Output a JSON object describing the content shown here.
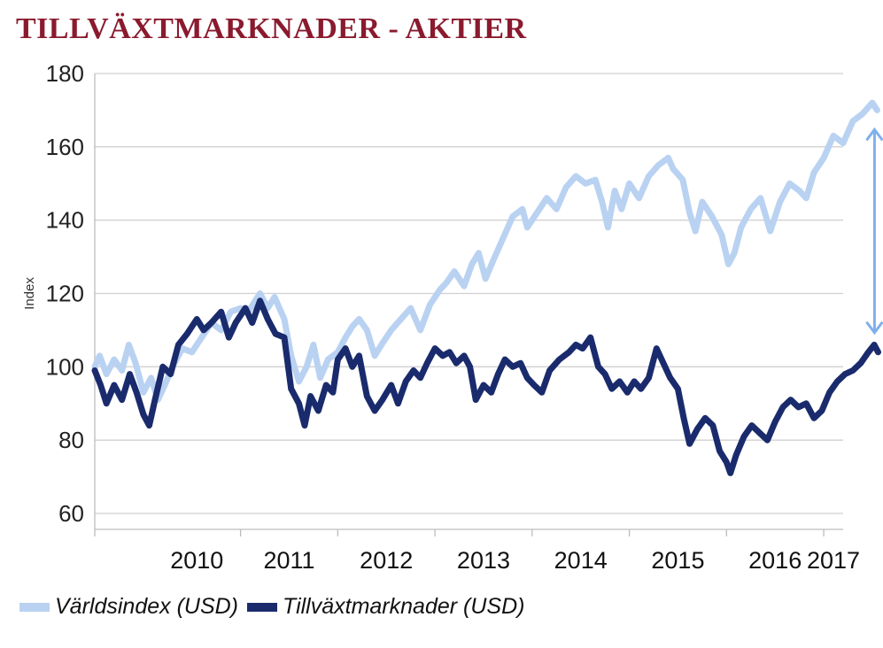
{
  "title": "TILLVÄXTMARKNADER - AKTIER",
  "colors": {
    "title": "#8a1a2e",
    "world": "#b9d2f2",
    "em": "#1a2b6d",
    "arrow": "#7fb0ee",
    "grid": "#d0d0d0"
  },
  "chart_data": {
    "type": "line",
    "title": "TILLVÄXTMARKNADER - AKTIER",
    "xlabel": "",
    "ylabel": "Index",
    "ylim": [
      60,
      180
    ],
    "yticks": [
      60,
      80,
      100,
      120,
      140,
      160,
      180
    ],
    "xlim": [
      2009.5,
      2017.2
    ],
    "xticks": [
      "2010",
      "2011",
      "2012",
      "2013",
      "2014",
      "2015",
      "2016",
      "2017"
    ],
    "grid": true,
    "legend_position": "bottom",
    "annotation": "double-headed arrow between the two series at end of 2017",
    "series": [
      {
        "name": "Världsindex (USD)",
        "color": "#b9d2f2",
        "points": [
          [
            2009.5,
            100
          ],
          [
            2009.55,
            103
          ],
          [
            2009.62,
            98
          ],
          [
            2009.7,
            102
          ],
          [
            2009.78,
            99
          ],
          [
            2009.85,
            106
          ],
          [
            2009.92,
            101
          ],
          [
            2010.0,
            93
          ],
          [
            2010.08,
            97
          ],
          [
            2010.15,
            91
          ],
          [
            2010.22,
            95
          ],
          [
            2010.3,
            100
          ],
          [
            2010.4,
            105
          ],
          [
            2010.5,
            104
          ],
          [
            2010.6,
            108
          ],
          [
            2010.7,
            112
          ],
          [
            2010.8,
            110
          ],
          [
            2010.9,
            115
          ],
          [
            2011.0,
            116
          ],
          [
            2011.08,
            115
          ],
          [
            2011.15,
            118
          ],
          [
            2011.2,
            120
          ],
          [
            2011.28,
            116
          ],
          [
            2011.35,
            119
          ],
          [
            2011.45,
            113
          ],
          [
            2011.52,
            103
          ],
          [
            2011.6,
            96
          ],
          [
            2011.68,
            100
          ],
          [
            2011.75,
            106
          ],
          [
            2011.82,
            97
          ],
          [
            2011.9,
            102
          ],
          [
            2012.0,
            104
          ],
          [
            2012.08,
            108
          ],
          [
            2012.15,
            111
          ],
          [
            2012.22,
            113
          ],
          [
            2012.3,
            110
          ],
          [
            2012.38,
            103
          ],
          [
            2012.45,
            106
          ],
          [
            2012.55,
            110
          ],
          [
            2012.65,
            113
          ],
          [
            2012.75,
            116
          ],
          [
            2012.85,
            110
          ],
          [
            2012.95,
            117
          ],
          [
            2013.05,
            121
          ],
          [
            2013.12,
            123
          ],
          [
            2013.2,
            126
          ],
          [
            2013.3,
            122
          ],
          [
            2013.38,
            128
          ],
          [
            2013.45,
            131
          ],
          [
            2013.52,
            124
          ],
          [
            2013.6,
            129
          ],
          [
            2013.7,
            135
          ],
          [
            2013.8,
            141
          ],
          [
            2013.9,
            143
          ],
          [
            2013.95,
            138
          ],
          [
            2014.05,
            142
          ],
          [
            2014.15,
            146
          ],
          [
            2014.25,
            143
          ],
          [
            2014.35,
            149
          ],
          [
            2014.45,
            152
          ],
          [
            2014.55,
            150
          ],
          [
            2014.65,
            151
          ],
          [
            2014.72,
            145
          ],
          [
            2014.78,
            138
          ],
          [
            2014.85,
            148
          ],
          [
            2014.92,
            143
          ],
          [
            2015.0,
            150
          ],
          [
            2015.1,
            146
          ],
          [
            2015.2,
            152
          ],
          [
            2015.3,
            155
          ],
          [
            2015.4,
            157
          ],
          [
            2015.45,
            154
          ],
          [
            2015.55,
            151
          ],
          [
            2015.62,
            142
          ],
          [
            2015.68,
            137
          ],
          [
            2015.75,
            145
          ],
          [
            2015.85,
            141
          ],
          [
            2015.95,
            136
          ],
          [
            2016.02,
            128
          ],
          [
            2016.08,
            131
          ],
          [
            2016.15,
            138
          ],
          [
            2016.25,
            143
          ],
          [
            2016.35,
            146
          ],
          [
            2016.45,
            137
          ],
          [
            2016.55,
            145
          ],
          [
            2016.65,
            150
          ],
          [
            2016.75,
            148
          ],
          [
            2016.82,
            146
          ],
          [
            2016.9,
            153
          ],
          [
            2017.0,
            157
          ],
          [
            2017.1,
            163
          ],
          [
            2017.2,
            161
          ],
          [
            2017.3,
            167
          ],
          [
            2017.4,
            169
          ],
          [
            2017.5,
            172
          ],
          [
            2017.55,
            170
          ]
        ]
      },
      {
        "name": "Tillväxtmarknader (USD)",
        "color": "#1a2b6d",
        "points": [
          [
            2009.5,
            99
          ],
          [
            2009.56,
            95
          ],
          [
            2009.62,
            90
          ],
          [
            2009.7,
            95
          ],
          [
            2009.78,
            91
          ],
          [
            2009.86,
            98
          ],
          [
            2009.93,
            93
          ],
          [
            2010.0,
            87
          ],
          [
            2010.06,
            84
          ],
          [
            2010.12,
            91
          ],
          [
            2010.2,
            100
          ],
          [
            2010.28,
            98
          ],
          [
            2010.36,
            106
          ],
          [
            2010.45,
            109
          ],
          [
            2010.55,
            113
          ],
          [
            2010.62,
            110
          ],
          [
            2010.7,
            112
          ],
          [
            2010.8,
            115
          ],
          [
            2010.88,
            108
          ],
          [
            2010.95,
            112
          ],
          [
            2011.05,
            116
          ],
          [
            2011.12,
            112
          ],
          [
            2011.2,
            118
          ],
          [
            2011.28,
            113
          ],
          [
            2011.36,
            109
          ],
          [
            2011.45,
            108
          ],
          [
            2011.52,
            94
          ],
          [
            2011.6,
            90
          ],
          [
            2011.66,
            84
          ],
          [
            2011.72,
            92
          ],
          [
            2011.8,
            88
          ],
          [
            2011.88,
            95
          ],
          [
            2011.95,
            93
          ],
          [
            2012.0,
            102
          ],
          [
            2012.08,
            105
          ],
          [
            2012.15,
            100
          ],
          [
            2012.22,
            103
          ],
          [
            2012.3,
            92
          ],
          [
            2012.38,
            88
          ],
          [
            2012.46,
            91
          ],
          [
            2012.55,
            95
          ],
          [
            2012.62,
            90
          ],
          [
            2012.7,
            96
          ],
          [
            2012.78,
            99
          ],
          [
            2012.85,
            97
          ],
          [
            2012.92,
            101
          ],
          [
            2013.0,
            105
          ],
          [
            2013.08,
            103
          ],
          [
            2013.15,
            104
          ],
          [
            2013.22,
            101
          ],
          [
            2013.3,
            103
          ],
          [
            2013.36,
            100
          ],
          [
            2013.42,
            91
          ],
          [
            2013.5,
            95
          ],
          [
            2013.58,
            93
          ],
          [
            2013.65,
            98
          ],
          [
            2013.72,
            102
          ],
          [
            2013.8,
            100
          ],
          [
            2013.88,
            101
          ],
          [
            2013.95,
            97
          ],
          [
            2014.02,
            95
          ],
          [
            2014.1,
            93
          ],
          [
            2014.18,
            99
          ],
          [
            2014.28,
            102
          ],
          [
            2014.38,
            104
          ],
          [
            2014.45,
            106
          ],
          [
            2014.52,
            105
          ],
          [
            2014.6,
            108
          ],
          [
            2014.68,
            100
          ],
          [
            2014.75,
            98
          ],
          [
            2014.82,
            94
          ],
          [
            2014.9,
            96
          ],
          [
            2014.98,
            93
          ],
          [
            2015.05,
            96
          ],
          [
            2015.12,
            94
          ],
          [
            2015.2,
            97
          ],
          [
            2015.28,
            105
          ],
          [
            2015.35,
            101
          ],
          [
            2015.42,
            97
          ],
          [
            2015.5,
            94
          ],
          [
            2015.56,
            86
          ],
          [
            2015.62,
            79
          ],
          [
            2015.7,
            83
          ],
          [
            2015.78,
            86
          ],
          [
            2015.86,
            84
          ],
          [
            2015.93,
            77
          ],
          [
            2016.0,
            74
          ],
          [
            2016.04,
            71
          ],
          [
            2016.1,
            76
          ],
          [
            2016.18,
            81
          ],
          [
            2016.26,
            84
          ],
          [
            2016.34,
            82
          ],
          [
            2016.42,
            80
          ],
          [
            2016.5,
            85
          ],
          [
            2016.58,
            89
          ],
          [
            2016.66,
            91
          ],
          [
            2016.74,
            89
          ],
          [
            2016.82,
            90
          ],
          [
            2016.9,
            86
          ],
          [
            2016.98,
            88
          ],
          [
            2017.06,
            93
          ],
          [
            2017.14,
            96
          ],
          [
            2017.22,
            98
          ],
          [
            2017.3,
            99
          ],
          [
            2017.38,
            101
          ],
          [
            2017.46,
            104
          ],
          [
            2017.52,
            106
          ],
          [
            2017.56,
            104
          ]
        ]
      }
    ]
  },
  "legend": [
    {
      "label": "Världsindex (USD)",
      "color": "#b9d2f2"
    },
    {
      "label": "Tillväxtmarknader (USD)",
      "color": "#1a2b6d"
    }
  ]
}
